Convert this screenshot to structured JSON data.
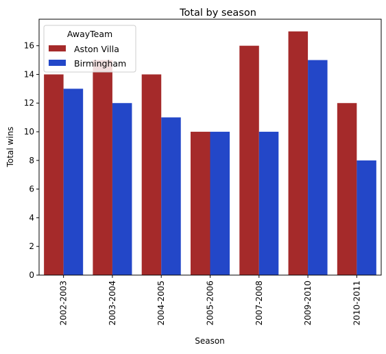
{
  "chart_data": {
    "type": "bar",
    "title": "Total by season",
    "xlabel": "Season",
    "ylabel": "Total wins",
    "categories": [
      "2002-2003",
      "2003-2004",
      "2004-2005",
      "2005-2006",
      "2007-2008",
      "2009-2010",
      "2010-2011"
    ],
    "series": [
      {
        "name": "Aston Villa",
        "color": "#a52a2a",
        "values": [
          14,
          15,
          14,
          10,
          16,
          17,
          12
        ]
      },
      {
        "name": "Birmingham",
        "color": "#2347c8",
        "values": [
          13,
          12,
          11,
          10,
          10,
          15,
          8
        ]
      }
    ],
    "ylim": [
      0,
      17.85
    ],
    "yticks": [
      0,
      2,
      4,
      6,
      8,
      10,
      12,
      14,
      16
    ],
    "grid": false,
    "legend": {
      "title": "AwayTeam",
      "position": "top-left"
    }
  }
}
